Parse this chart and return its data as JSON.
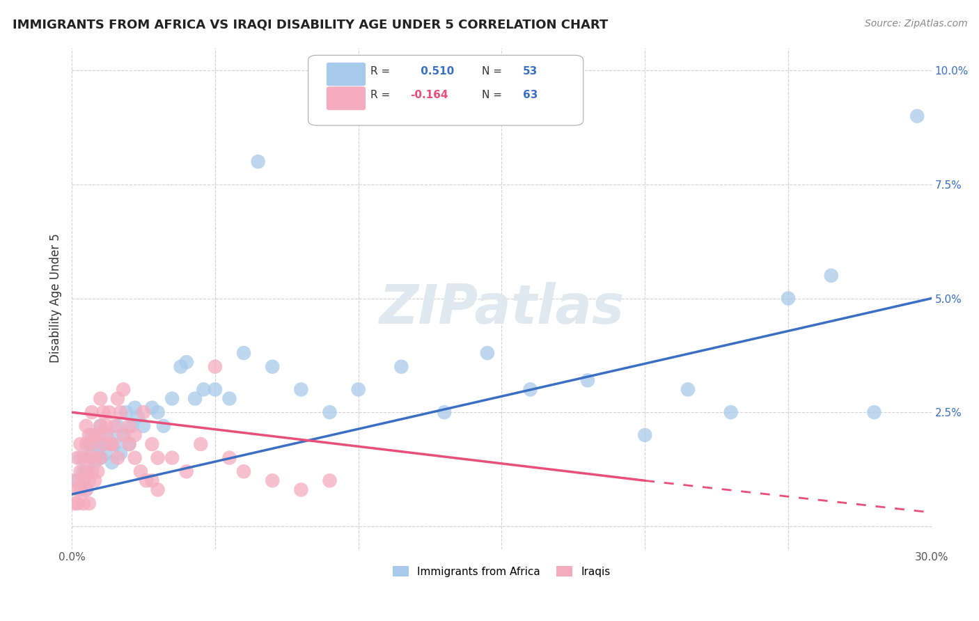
{
  "title": "IMMIGRANTS FROM AFRICA VS IRAQI DISABILITY AGE UNDER 5 CORRELATION CHART",
  "source": "Source: ZipAtlas.com",
  "ylabel": "Disability Age Under 5",
  "xlim": [
    0.0,
    0.3
  ],
  "ylim": [
    -0.005,
    0.105
  ],
  "xticks": [
    0.0,
    0.05,
    0.1,
    0.15,
    0.2,
    0.25,
    0.3
  ],
  "yticks": [
    0.0,
    0.025,
    0.05,
    0.075,
    0.1
  ],
  "ytick_labels": [
    "",
    "2.5%",
    "5.0%",
    "7.5%",
    "10.0%"
  ],
  "xtick_labels": [
    "0.0%",
    "",
    "",
    "",
    "",
    "",
    "30.0%"
  ],
  "blue_R": 0.51,
  "blue_N": 53,
  "pink_R": -0.164,
  "pink_N": 63,
  "blue_color": "#A8CAEA",
  "pink_color": "#F5ABBE",
  "blue_line_color": "#3A6FC4",
  "pink_line_color": "#E8507A",
  "background_color": "#FFFFFF",
  "watermark": "ZIPatlas",
  "blue_scatter_x": [
    0.002,
    0.003,
    0.004,
    0.005,
    0.006,
    0.007,
    0.007,
    0.008,
    0.009,
    0.01,
    0.01,
    0.011,
    0.012,
    0.013,
    0.014,
    0.015,
    0.016,
    0.017,
    0.018,
    0.019,
    0.02,
    0.021,
    0.022,
    0.023,
    0.025,
    0.028,
    0.03,
    0.032,
    0.035,
    0.038,
    0.04,
    0.043,
    0.046,
    0.05,
    0.055,
    0.06,
    0.065,
    0.07,
    0.08,
    0.09,
    0.1,
    0.115,
    0.13,
    0.145,
    0.16,
    0.18,
    0.2,
    0.215,
    0.23,
    0.25,
    0.265,
    0.28,
    0.295
  ],
  "blue_scatter_y": [
    0.01,
    0.015,
    0.012,
    0.008,
    0.018,
    0.016,
    0.02,
    0.014,
    0.018,
    0.015,
    0.022,
    0.018,
    0.016,
    0.02,
    0.014,
    0.018,
    0.022,
    0.016,
    0.02,
    0.025,
    0.018,
    0.022,
    0.026,
    0.024,
    0.022,
    0.026,
    0.025,
    0.022,
    0.028,
    0.035,
    0.036,
    0.028,
    0.03,
    0.03,
    0.028,
    0.038,
    0.08,
    0.035,
    0.03,
    0.025,
    0.03,
    0.035,
    0.025,
    0.038,
    0.03,
    0.032,
    0.02,
    0.03,
    0.025,
    0.05,
    0.055,
    0.025,
    0.09
  ],
  "pink_scatter_x": [
    0.001,
    0.001,
    0.002,
    0.002,
    0.002,
    0.003,
    0.003,
    0.003,
    0.004,
    0.004,
    0.004,
    0.005,
    0.005,
    0.005,
    0.005,
    0.006,
    0.006,
    0.006,
    0.006,
    0.007,
    0.007,
    0.007,
    0.008,
    0.008,
    0.008,
    0.009,
    0.009,
    0.01,
    0.01,
    0.011,
    0.011,
    0.012,
    0.013,
    0.014,
    0.015,
    0.016,
    0.017,
    0.018,
    0.02,
    0.022,
    0.025,
    0.028,
    0.03,
    0.035,
    0.04,
    0.045,
    0.05,
    0.055,
    0.06,
    0.07,
    0.08,
    0.09,
    0.01,
    0.012,
    0.014,
    0.016,
    0.018,
    0.02,
    0.022,
    0.024,
    0.026,
    0.028,
    0.03
  ],
  "pink_scatter_y": [
    0.005,
    0.01,
    0.008,
    0.015,
    0.005,
    0.012,
    0.008,
    0.018,
    0.01,
    0.015,
    0.005,
    0.012,
    0.018,
    0.008,
    0.022,
    0.01,
    0.015,
    0.02,
    0.005,
    0.012,
    0.018,
    0.025,
    0.01,
    0.015,
    0.02,
    0.012,
    0.02,
    0.015,
    0.022,
    0.018,
    0.025,
    0.02,
    0.025,
    0.018,
    0.022,
    0.028,
    0.025,
    0.03,
    0.022,
    0.02,
    0.025,
    0.018,
    0.015,
    0.015,
    0.012,
    0.018,
    0.035,
    0.015,
    0.012,
    0.01,
    0.008,
    0.01,
    0.028,
    0.022,
    0.018,
    0.015,
    0.02,
    0.018,
    0.015,
    0.012,
    0.01,
    0.01,
    0.008
  ],
  "blue_line_x0": 0.0,
  "blue_line_x1": 0.3,
  "blue_line_y0": 0.007,
  "blue_line_y1": 0.05,
  "pink_line_solid_x0": 0.0,
  "pink_line_solid_x1": 0.2,
  "pink_line_solid_y0": 0.025,
  "pink_line_solid_y1": 0.01,
  "pink_line_dash_x0": 0.2,
  "pink_line_dash_x1": 0.3,
  "pink_line_dash_y0": 0.01,
  "pink_line_dash_y1": 0.003,
  "legend_blue_label": "Immigrants from Africa",
  "legend_pink_label": "Iraqis"
}
